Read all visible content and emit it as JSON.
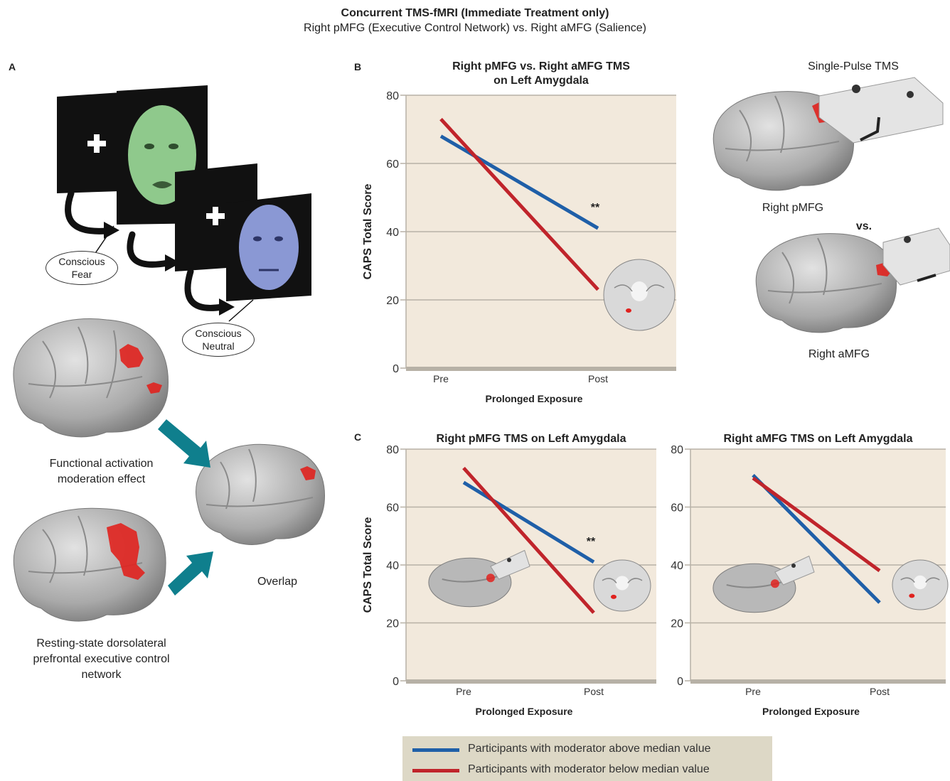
{
  "figure": {
    "title": "Concurrent TMS-fMRI (Immediate Treatment only)",
    "subtitle": "Right pMFG (Executive Control Network) vs. Right aMFG (Salience)"
  },
  "panel_a": {
    "letter": "A",
    "oval_fear": "Conscious Fear",
    "oval_neutral": "Conscious Neutral",
    "caption_functional": "Functional activation moderation effect",
    "caption_resting": "Resting-state dorsolateral prefrontal executive control network",
    "caption_overlap": "Overlap"
  },
  "panel_b": {
    "letter": "B",
    "tms_label": "Single-Pulse TMS",
    "label_pmfg": "Right pMFG",
    "label_vs": "vs.",
    "label_amfg": "Right aMFG"
  },
  "panel_c": {
    "letter": "C"
  },
  "legend": {
    "above": "Participants with moderator above median value",
    "below": "Participants with moderator below median value"
  },
  "colors": {
    "above": "#1f5fa8",
    "below": "#c0242b",
    "plot_bg": "#f2e9dc",
    "axis": "#b7b1a6"
  },
  "chart_data": [
    {
      "type": "line",
      "title": "Right pMFG vs. Right aMFG TMS on Left Amygdala",
      "title_lines": [
        "Right pMFG vs. Right aMFG TMS",
        "on Left Amygdala"
      ],
      "categories": [
        "Pre",
        "Post"
      ],
      "xlabel": "Prolonged Exposure",
      "ylabel": "CAPS Total Score",
      "ylim": [
        0,
        80
      ],
      "yticks": [
        0,
        20,
        40,
        60,
        80
      ],
      "grid": true,
      "annotation": "**",
      "series": [
        {
          "values": [
            68,
            41
          ],
          "color": "#1f5fa8"
        },
        {
          "values": [
            73,
            23
          ],
          "color": "#c0242b"
        }
      ]
    },
    {
      "type": "line",
      "title": "Right pMFG TMS on Left Amygdala",
      "title_lines": [
        "Right pMFG TMS on Left Amygdala"
      ],
      "categories": [
        "Pre",
        "Post"
      ],
      "xlabel": "Prolonged Exposure",
      "ylabel": "CAPS Total Score",
      "ylim": [
        0,
        80
      ],
      "yticks": [
        0,
        20,
        40,
        60,
        80
      ],
      "grid": true,
      "annotation": "**",
      "series": [
        {
          "values": [
            68.5,
            41
          ],
          "color": "#1f5fa8"
        },
        {
          "values": [
            73.5,
            23.5
          ],
          "color": "#c0242b"
        }
      ]
    },
    {
      "type": "line",
      "title": "Right aMFG TMS on Left Amygdala",
      "title_lines": [
        "Right aMFG TMS on Left Amygdala"
      ],
      "categories": [
        "Pre",
        "Post"
      ],
      "xlabel": "Prolonged Exposure",
      "ylabel": "",
      "ylim": [
        0,
        80
      ],
      "yticks": [
        0,
        20,
        40,
        60,
        80
      ],
      "grid": true,
      "annotation": "",
      "series": [
        {
          "values": [
            71,
            27
          ],
          "color": "#1f5fa8"
        },
        {
          "values": [
            70,
            38
          ],
          "color": "#c0242b"
        }
      ]
    }
  ]
}
